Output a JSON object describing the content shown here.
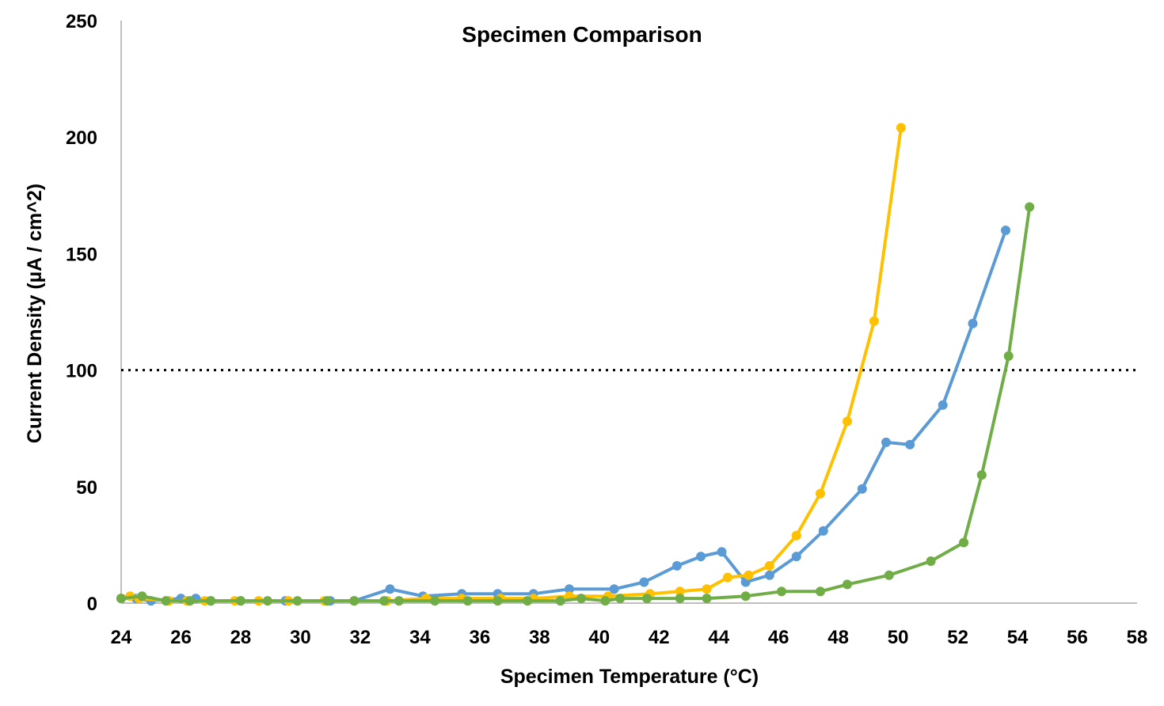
{
  "chart_data": {
    "type": "line",
    "title": "Specimen Comparison",
    "xlabel": "Specimen Temperature (°C)",
    "ylabel": "Current Density (µA / cm^2)",
    "xlim": [
      24,
      58
    ],
    "ylim": [
      0,
      250
    ],
    "xticks": [
      24,
      26,
      28,
      30,
      32,
      34,
      36,
      38,
      40,
      42,
      44,
      46,
      48,
      50,
      52,
      54,
      56,
      58
    ],
    "yticks": [
      0,
      50,
      100,
      150,
      200,
      250
    ],
    "grid": false,
    "legend": "none",
    "reference_line": {
      "y": 100,
      "style": "dotted",
      "color": "#000000"
    },
    "series": [
      {
        "color": "#5B9BD5",
        "x": [
          24.0,
          24.5,
          25.0,
          26.0,
          26.5,
          27.0,
          28.0,
          29.5,
          31.0,
          31.8,
          33.0,
          34.1,
          35.4,
          36.6,
          37.8,
          39.0,
          40.5,
          41.5,
          42.6,
          43.4,
          44.1,
          44.9,
          45.7,
          46.6,
          47.5,
          48.8,
          49.6,
          50.4,
          51.5,
          52.5,
          53.6
        ],
        "y": [
          2,
          2,
          1,
          2,
          2,
          1,
          1,
          1,
          1,
          1,
          6,
          3,
          4,
          4,
          4,
          6,
          6,
          9,
          16,
          20,
          22,
          9,
          12,
          20,
          31,
          49,
          69,
          68,
          85,
          120,
          160
        ]
      },
      {
        "color": "#FFC000",
        "x": [
          24.0,
          24.3,
          24.6,
          25.6,
          26.2,
          26.8,
          27.8,
          28.6,
          29.6,
          30.8,
          31.8,
          32.9,
          34.2,
          35.4,
          36.7,
          37.8,
          39.0,
          40.3,
          41.7,
          42.7,
          43.6,
          44.3,
          45.0,
          45.7,
          46.6,
          47.4,
          48.3,
          49.2,
          50.1
        ],
        "y": [
          2,
          3,
          2,
          1,
          1,
          1,
          1,
          1,
          1,
          1,
          1,
          1,
          2,
          2,
          2,
          2,
          3,
          3,
          4,
          5,
          6,
          11,
          12,
          16,
          29,
          47,
          78,
          121,
          204
        ]
      },
      {
        "color": "#70AD47",
        "x": [
          24.0,
          24.7,
          25.5,
          26.3,
          27.0,
          28.0,
          28.9,
          29.9,
          30.9,
          31.8,
          32.8,
          33.3,
          34.5,
          35.6,
          36.6,
          37.6,
          38.7,
          39.4,
          40.2,
          40.7,
          41.6,
          42.7,
          43.6,
          44.9,
          46.1,
          47.4,
          48.3,
          49.7,
          51.1,
          52.2,
          52.8,
          53.7,
          54.4
        ],
        "y": [
          2,
          3,
          1,
          1,
          1,
          1,
          1,
          1,
          1,
          1,
          1,
          1,
          1,
          1,
          1,
          1,
          1,
          2,
          1,
          2,
          2,
          2,
          2,
          3,
          5,
          5,
          8,
          12,
          18,
          26,
          55,
          106,
          170
        ]
      }
    ]
  }
}
